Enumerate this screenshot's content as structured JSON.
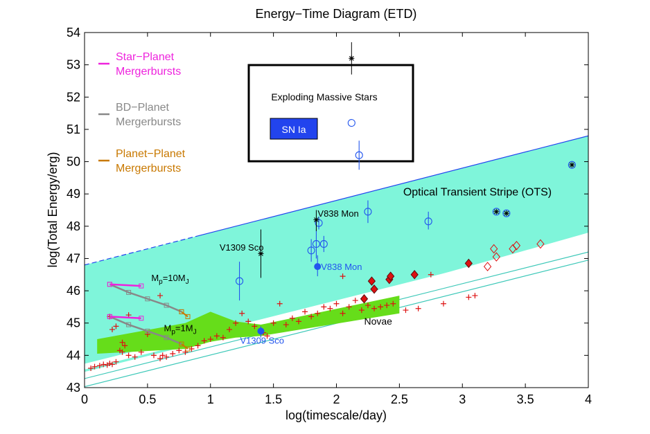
{
  "chart_data": {
    "type": "scatter",
    "title": "Energy−Time Diagram (ETD)",
    "xlabel": "log(timescale/day)",
    "ylabel": "log(Total Energy/erg)",
    "xlim": [
      0,
      4
    ],
    "ylim": [
      43,
      54
    ],
    "xticks": [
      "0",
      "0.5",
      "1",
      "1.5",
      "2",
      "2.5",
      "3",
      "3.5",
      "4"
    ],
    "yticks": [
      "43",
      "44",
      "45",
      "46",
      "47",
      "48",
      "49",
      "50",
      "51",
      "52",
      "53",
      "54"
    ],
    "grid": false,
    "colors": {
      "ots": "#7ff5da",
      "ots_edge": "#2244ee",
      "novae_band": "#66dd1a",
      "star_planet": "#ee22dd",
      "bd_planet": "#888888",
      "planet_planet": "#c87800",
      "red": "#dd1111",
      "blue": "#2255ee",
      "sn_box": "#2244ee",
      "stripe": "#3cc8b8"
    },
    "legend": [
      {
        "key": "star_planet",
        "lines": [
          "Star−Planet",
          "Mergerbursts"
        ]
      },
      {
        "key": "bd_planet",
        "lines": [
          "BD−Planet",
          "Mergerbursts"
        ]
      },
      {
        "key": "planet_planet",
        "lines": [
          "Planet−Planet",
          "Mergerbursts"
        ]
      }
    ],
    "ots_region": {
      "label": "Optical Transient Stripe (OTS)",
      "upper": [
        [
          0,
          46.8
        ],
        [
          4,
          50.8
        ]
      ],
      "lower": [
        [
          0,
          43.4
        ],
        [
          4,
          47.8
        ]
      ],
      "dashed_until_x": 0.9
    },
    "white_gaps": [
      {
        "x0": 0,
        "y0": 43.65,
        "x1": 4,
        "y1": 47.58
      },
      {
        "x0": 0,
        "y0": 43.4,
        "x1": 4,
        "y1": 47.33
      },
      {
        "x0": 0,
        "y0": 43.15,
        "x1": 4,
        "y1": 47.08
      }
    ],
    "novae_band": {
      "label": "Novae",
      "upper": [
        [
          0.1,
          44.5
        ],
        [
          0.8,
          45.0
        ],
        [
          1.0,
          45.35
        ],
        [
          1.2,
          45.05
        ],
        [
          1.4,
          44.95
        ],
        [
          2.5,
          45.85
        ]
      ],
      "lower": [
        [
          0.1,
          44.05
        ],
        [
          0.8,
          44.2
        ],
        [
          1.0,
          44.42
        ],
        [
          1.2,
          44.55
        ],
        [
          1.4,
          44.6
        ],
        [
          2.5,
          45.3
        ]
      ]
    },
    "red_plus": [
      [
        0.05,
        43.6
      ],
      [
        0.08,
        43.65
      ],
      [
        0.12,
        43.68
      ],
      [
        0.15,
        43.72
      ],
      [
        0.18,
        43.7
      ],
      [
        0.2,
        43.75
      ],
      [
        0.22,
        43.72
      ],
      [
        0.25,
        43.8
      ],
      [
        0.3,
        44.1
      ],
      [
        0.32,
        44.3
      ],
      [
        0.35,
        44.0
      ],
      [
        0.4,
        43.95
      ],
      [
        0.45,
        44.1
      ],
      [
        0.55,
        44.0
      ],
      [
        0.6,
        43.9
      ],
      [
        0.62,
        44.0
      ],
      [
        0.65,
        43.95
      ],
      [
        0.7,
        44.05
      ],
      [
        0.75,
        44.15
      ],
      [
        0.8,
        44.1
      ],
      [
        0.85,
        44.2
      ],
      [
        0.9,
        44.3
      ],
      [
        0.95,
        44.45
      ],
      [
        1.0,
        44.5
      ],
      [
        1.05,
        44.6
      ],
      [
        1.1,
        44.55
      ],
      [
        1.15,
        44.8
      ],
      [
        1.2,
        45.0
      ],
      [
        1.25,
        45.3
      ],
      [
        1.3,
        45.05
      ],
      [
        1.35,
        44.9
      ],
      [
        1.42,
        44.7
      ],
      [
        1.45,
        44.6
      ],
      [
        1.5,
        45.0
      ],
      [
        1.55,
        45.6
      ],
      [
        1.6,
        44.95
      ],
      [
        1.65,
        45.15
      ],
      [
        1.7,
        45.05
      ],
      [
        1.75,
        45.35
      ],
      [
        1.8,
        45.2
      ],
      [
        1.85,
        45.3
      ],
      [
        1.9,
        45.5
      ],
      [
        1.95,
        45.45
      ],
      [
        2.0,
        45.6
      ],
      [
        2.05,
        45.3
      ],
      [
        2.1,
        45.5
      ],
      [
        2.15,
        45.7
      ],
      [
        2.2,
        45.4
      ],
      [
        2.25,
        45.55
      ],
      [
        2.3,
        45.45
      ],
      [
        2.35,
        45.5
      ],
      [
        2.4,
        45.55
      ],
      [
        2.45,
        45.6
      ],
      [
        2.55,
        45.4
      ],
      [
        2.65,
        45.45
      ],
      [
        2.75,
        46.5
      ],
      [
        2.85,
        45.6
      ],
      [
        3.05,
        45.8
      ],
      [
        3.1,
        45.85
      ],
      [
        2.05,
        46.45
      ],
      [
        0.3,
        44.4
      ],
      [
        0.5,
        44.65
      ],
      [
        0.6,
        45.85
      ],
      [
        0.2,
        45.2
      ],
      [
        0.22,
        44.8
      ],
      [
        0.35,
        45.25
      ],
      [
        0.25,
        44.9
      ],
      [
        0.28,
        44.15
      ]
    ],
    "red_diamond_filled": [
      [
        2.22,
        45.75
      ],
      [
        2.28,
        46.3
      ],
      [
        2.3,
        46.05
      ],
      [
        2.42,
        46.35
      ],
      [
        2.43,
        46.45
      ],
      [
        2.62,
        46.5
      ],
      [
        3.05,
        46.85
      ]
    ],
    "red_diamond_open": [
      [
        3.2,
        46.75
      ],
      [
        3.25,
        47.3
      ],
      [
        3.27,
        47.05
      ],
      [
        3.4,
        47.3
      ],
      [
        3.43,
        47.4
      ],
      [
        3.62,
        47.45
      ]
    ],
    "blue_circles": [
      {
        "x": 1.23,
        "y": 46.3,
        "err": [
          45.7,
          46.9
        ]
      },
      {
        "x": 1.8,
        "y": 47.25,
        "err": [
          46.9,
          47.6
        ]
      },
      {
        "x": 1.84,
        "y": 47.45,
        "err": [
          47.0,
          47.9
        ]
      },
      {
        "x": 1.86,
        "y": 48.1,
        "err": [
          47.9,
          48.3
        ]
      },
      {
        "x": 1.9,
        "y": 47.45,
        "err": [
          47.2,
          47.7
        ]
      },
      {
        "x": 2.25,
        "y": 48.45,
        "err": [
          48.1,
          48.8
        ]
      },
      {
        "x": 2.73,
        "y": 48.15,
        "err": [
          47.9,
          48.45
        ]
      },
      {
        "x": 2.12,
        "y": 51.2,
        "err": null
      },
      {
        "x": 2.18,
        "y": 50.2,
        "err": [
          49.75,
          50.65
        ]
      }
    ],
    "black_stars": [
      {
        "x": 1.4,
        "y": 47.15,
        "err": [
          46.4,
          47.9
        ]
      },
      {
        "x": 1.84,
        "y": 48.2,
        "err": [
          47.85,
          48.5
        ]
      },
      {
        "x": 2.12,
        "y": 53.2,
        "err": [
          52.7,
          53.7
        ]
      }
    ],
    "circled_stars": [
      [
        3.27,
        48.45
      ],
      [
        3.35,
        48.4
      ],
      [
        3.87,
        49.9
      ]
    ],
    "blue_filled": [
      {
        "x": 1.85,
        "y": 46.75,
        "err": [
          46.45,
          47.1
        ],
        "label": "V838 Mon"
      },
      {
        "x": 1.4,
        "y": 44.75,
        "err": [
          44.55,
          44.9
        ],
        "label": "V1309 Sco"
      }
    ],
    "black_labels": [
      {
        "text": "V838 Mon",
        "x": 1.84,
        "y": 48.3
      },
      {
        "text": "V1309 Sco",
        "x": 1.4,
        "y": 47.25
      }
    ],
    "merger_models": [
      {
        "label_main": "M",
        "label_sub1": "p",
        "label_mid": "=10M",
        "label_sub2": "J",
        "star_planet": [
          [
            0.2,
            46.2
          ],
          [
            0.45,
            46.15
          ]
        ],
        "bd_planet": [
          [
            0.2,
            46.2
          ],
          [
            0.35,
            45.95
          ],
          [
            0.5,
            45.75
          ],
          [
            0.65,
            45.55
          ],
          [
            0.77,
            45.35
          ]
        ],
        "planet_planet": [
          [
            0.77,
            45.35
          ],
          [
            0.82,
            45.2
          ]
        ]
      },
      {
        "label_main": "M",
        "label_sub1": "p",
        "label_mid": "=1M",
        "label_sub2": "J",
        "star_planet": [
          [
            0.2,
            45.2
          ],
          [
            0.45,
            45.15
          ]
        ],
        "bd_planet": [
          [
            0.2,
            45.2
          ],
          [
            0.35,
            44.95
          ],
          [
            0.5,
            44.75
          ],
          [
            0.65,
            44.55
          ],
          [
            0.77,
            44.35
          ]
        ],
        "planet_planet": [
          [
            0.77,
            44.35
          ],
          [
            0.82,
            44.2
          ]
        ]
      }
    ],
    "exploding_box": {
      "label": "Exploding Massive Stars",
      "sn_label": "SN Ia"
    }
  }
}
